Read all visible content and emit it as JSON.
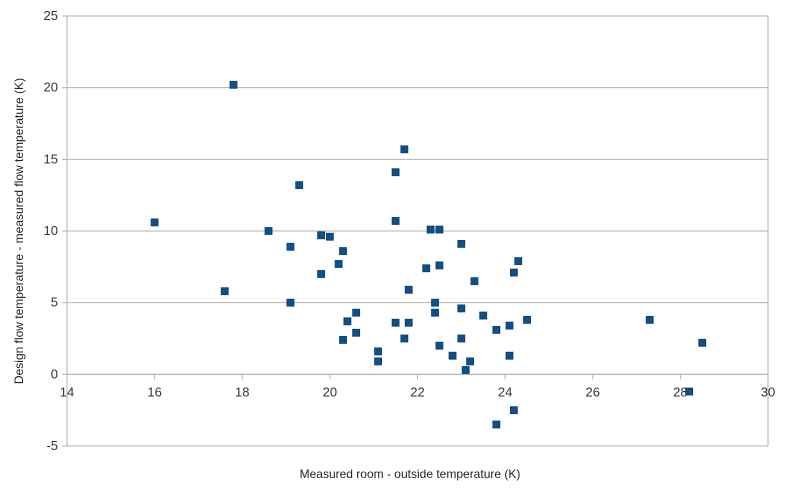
{
  "chart_data": {
    "type": "scatter",
    "title": "",
    "xlabel": "Measured room - outside temperature (K)",
    "ylabel": "Design flow temperature - measured flow temperature (K)",
    "xlim": [
      14,
      30
    ],
    "ylim": [
      -5,
      25
    ],
    "x_ticks": [
      "14",
      "16",
      "18",
      "20",
      "22",
      "24",
      "26",
      "28",
      "30"
    ],
    "y_ticks": [
      "-5",
      "0",
      "5",
      "10",
      "15",
      "20",
      "25"
    ],
    "grid": "horizontal",
    "legend": "none",
    "marker": "square",
    "marker_color": "#0f4f8a",
    "series": [
      {
        "points": [
          [
            16.0,
            10.6
          ],
          [
            17.6,
            5.8
          ],
          [
            17.8,
            20.2
          ],
          [
            18.6,
            10.0
          ],
          [
            19.1,
            8.9
          ],
          [
            19.1,
            5.0
          ],
          [
            19.3,
            13.2
          ],
          [
            19.8,
            9.7
          ],
          [
            19.8,
            7.0
          ],
          [
            20.0,
            9.6
          ],
          [
            20.2,
            7.7
          ],
          [
            20.3,
            8.6
          ],
          [
            20.3,
            2.4
          ],
          [
            20.4,
            3.7
          ],
          [
            20.6,
            4.3
          ],
          [
            20.6,
            2.9
          ],
          [
            21.1,
            1.6
          ],
          [
            21.1,
            0.9
          ],
          [
            21.5,
            14.1
          ],
          [
            21.5,
            10.7
          ],
          [
            21.5,
            3.6
          ],
          [
            21.7,
            15.7
          ],
          [
            21.7,
            2.5
          ],
          [
            21.8,
            3.6
          ],
          [
            21.8,
            5.9
          ],
          [
            22.2,
            7.4
          ],
          [
            22.3,
            10.1
          ],
          [
            22.4,
            5.0
          ],
          [
            22.4,
            4.3
          ],
          [
            22.5,
            7.6
          ],
          [
            22.5,
            2.0
          ],
          [
            22.5,
            10.1
          ],
          [
            22.8,
            1.3
          ],
          [
            23.0,
            9.1
          ],
          [
            23.0,
            4.6
          ],
          [
            23.0,
            2.5
          ],
          [
            23.1,
            0.3
          ],
          [
            23.2,
            0.9
          ],
          [
            23.3,
            6.5
          ],
          [
            23.5,
            4.1
          ],
          [
            23.8,
            3.1
          ],
          [
            23.8,
            -3.5
          ],
          [
            24.1,
            1.3
          ],
          [
            24.1,
            3.4
          ],
          [
            24.2,
            -2.5
          ],
          [
            24.2,
            7.1
          ],
          [
            24.3,
            7.9
          ],
          [
            24.5,
            3.8
          ],
          [
            27.3,
            3.8
          ],
          [
            28.2,
            -1.2
          ],
          [
            28.5,
            2.2
          ]
        ]
      }
    ]
  }
}
